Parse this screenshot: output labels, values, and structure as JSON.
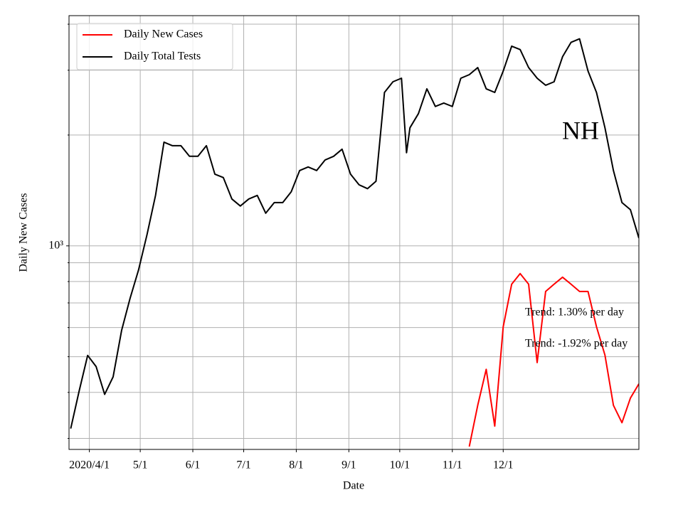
{
  "chart_data": {
    "type": "line",
    "xlabel": "Date",
    "ylabel": "Daily New Cases",
    "annotations": [
      "NH",
      "Trend: 1.30% per day",
      "Trend: -1.92% per day"
    ],
    "log_y": true,
    "grid": true,
    "legend": "upper left",
    "xlim": [
      "2020-03-20",
      "2021-02-19"
    ],
    "xticks": [
      {
        "value": "2020-04-01",
        "label": "2020/4/1"
      },
      {
        "value": "2020-05-01",
        "label": "5/1"
      },
      {
        "value": "2020-06-01",
        "label": "6/1"
      },
      {
        "value": "2020-07-01",
        "label": "7/1"
      },
      {
        "value": "2020-08-01",
        "label": "8/1"
      },
      {
        "value": "2020-09-01",
        "label": "9/1"
      },
      {
        "value": "2020-10-01",
        "label": "10/1"
      },
      {
        "value": "2020-11-01",
        "label": "11/1"
      },
      {
        "value": "2020-12-01",
        "label": "12/1"
      }
    ],
    "ylim": [
      280,
      4220
    ],
    "yticks": [
      {
        "value": 1000,
        "label": "10³"
      }
    ],
    "yminor_ticks": [
      300,
      400,
      500,
      600,
      700,
      800,
      900,
      2000,
      3000,
      4000
    ],
    "x": [
      "2020-03-21",
      "2020-03-26",
      "2020-03-31",
      "2020-04-05",
      "2020-04-10",
      "2020-04-15",
      "2020-04-20",
      "2020-04-25",
      "2020-04-30",
      "2020-05-05",
      "2020-05-10",
      "2020-05-15",
      "2020-05-20",
      "2020-05-25",
      "2020-05-30",
      "2020-06-04",
      "2020-06-09",
      "2020-06-14",
      "2020-06-19",
      "2020-06-24",
      "2020-06-29",
      "2020-07-04",
      "2020-07-09",
      "2020-07-14",
      "2020-07-19",
      "2020-07-24",
      "2020-07-29",
      "2020-08-03",
      "2020-08-08",
      "2020-08-13",
      "2020-08-18",
      "2020-08-23",
      "2020-08-28",
      "2020-09-02",
      "2020-09-07",
      "2020-09-12",
      "2020-09-17",
      "2020-09-22",
      "2020-09-27",
      "2020-10-02",
      "2020-10-05",
      "2020-10-07",
      "2020-10-12",
      "2020-10-17",
      "2020-10-22",
      "2020-10-27",
      "2020-11-01",
      "2020-11-06",
      "2020-11-11",
      "2020-11-16",
      "2020-11-21",
      "2020-11-26",
      "2020-12-01",
      "2020-12-06",
      "2020-12-11",
      "2020-12-16",
      "2020-12-21",
      "2020-12-26",
      "2020-12-31",
      "2021-01-05",
      "2021-01-10",
      "2021-01-15",
      "2021-01-20",
      "2021-01-25",
      "2021-01-30",
      "2021-02-04",
      "2021-02-09",
      "2021-02-14",
      "2021-02-19"
    ],
    "series": [
      {
        "name": "Daily New Cases",
        "color": "#ff0000",
        "values": [
          null,
          null,
          null,
          null,
          null,
          null,
          null,
          null,
          null,
          null,
          null,
          null,
          null,
          null,
          null,
          null,
          null,
          null,
          null,
          null,
          null,
          null,
          null,
          null,
          null,
          null,
          null,
          null,
          null,
          null,
          null,
          null,
          null,
          null,
          null,
          null,
          null,
          null,
          null,
          null,
          null,
          null,
          null,
          null,
          null,
          null,
          null,
          null,
          285,
          369,
          462,
          324,
          603,
          787,
          841,
          787,
          482,
          752,
          787,
          822,
          787,
          752,
          752,
          603,
          505,
          369,
          331,
          386,
          422
        ]
      },
      {
        "name": "Daily Total Tests",
        "color": "#000000",
        "values": [
          319,
          404,
          504,
          470,
          395,
          441,
          589,
          720,
          860,
          1074,
          1371,
          1913,
          1871,
          1871,
          1751,
          1751,
          1871,
          1566,
          1533,
          1341,
          1283,
          1341,
          1371,
          1227,
          1311,
          1311,
          1402,
          1602,
          1638,
          1602,
          1712,
          1751,
          1831,
          1566,
          1465,
          1430,
          1498,
          2611,
          2790,
          2853,
          1790,
          2093,
          2286,
          2670,
          2391,
          2443,
          2391,
          2853,
          2918,
          3050,
          2670,
          2611,
          2985,
          3487,
          3413,
          3050,
          2853,
          2730,
          2790,
          3264,
          3570,
          3650,
          2985,
          2611,
          2093,
          1602,
          1311,
          1254,
          1050
        ]
      }
    ]
  }
}
